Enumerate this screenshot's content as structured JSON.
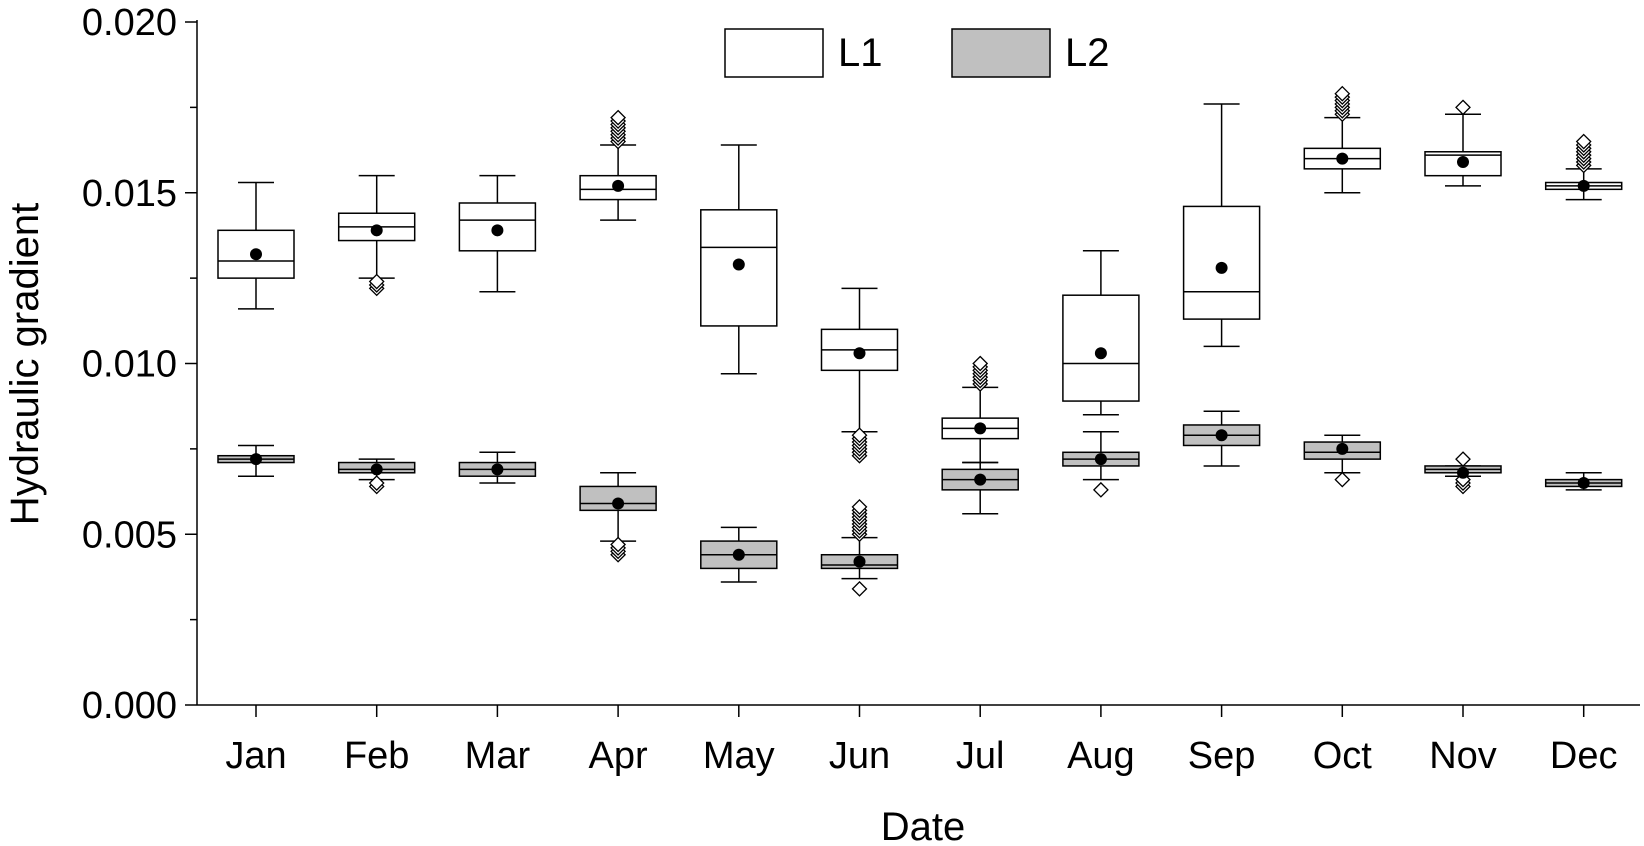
{
  "chart_data": {
    "type": "box",
    "title": "",
    "xlabel": "Date",
    "ylabel": "Hydraulic gradient",
    "ylim": [
      0,
      0.02
    ],
    "yticks": [
      "0.000",
      "0.005",
      "0.010",
      "0.015",
      "0.020"
    ],
    "ytick_values": [
      0,
      0.005,
      0.01,
      0.015,
      0.02
    ],
    "grid": false,
    "legend_position": "top-center",
    "categories": [
      "Jan",
      "Feb",
      "Mar",
      "Apr",
      "May",
      "Jun",
      "Jul",
      "Aug",
      "Sep",
      "Oct",
      "Nov",
      "Dec"
    ],
    "series": [
      {
        "name": "L1",
        "fill": "#ffffff",
        "boxes": [
          {
            "whisker_low": 0.0116,
            "q1": 0.0125,
            "median": 0.013,
            "q3": 0.0139,
            "whisker_high": 0.0153,
            "mean": 0.0132,
            "outliers_low": [],
            "outliers_high": []
          },
          {
            "whisker_low": 0.0125,
            "q1": 0.0136,
            "median": 0.014,
            "q3": 0.0144,
            "whisker_high": 0.0155,
            "mean": 0.0139,
            "outliers_low": [
              0.0122,
              0.0123,
              0.0124
            ],
            "outliers_high": []
          },
          {
            "whisker_low": 0.0121,
            "q1": 0.0133,
            "median": 0.0142,
            "q3": 0.0147,
            "whisker_high": 0.0155,
            "mean": 0.0139,
            "outliers_low": [],
            "outliers_high": []
          },
          {
            "whisker_low": 0.0142,
            "q1": 0.0148,
            "median": 0.0151,
            "q3": 0.0155,
            "whisker_high": 0.0164,
            "mean": 0.0152,
            "outliers_low": [],
            "outliers_high": [
              0.0165,
              0.0166,
              0.0167,
              0.0168,
              0.0169,
              0.017,
              0.0171,
              0.0172
            ]
          },
          {
            "whisker_low": 0.0097,
            "q1": 0.0111,
            "median": 0.0134,
            "q3": 0.0145,
            "whisker_high": 0.0164,
            "mean": 0.0129,
            "outliers_low": [],
            "outliers_high": []
          },
          {
            "whisker_low": 0.008,
            "q1": 0.0098,
            "median": 0.0104,
            "q3": 0.011,
            "whisker_high": 0.0122,
            "mean": 0.0103,
            "outliers_low": [
              0.0073,
              0.0074,
              0.0075,
              0.0076,
              0.0077,
              0.0078,
              0.0079
            ],
            "outliers_high": []
          },
          {
            "whisker_low": 0.0071,
            "q1": 0.0078,
            "median": 0.0081,
            "q3": 0.0084,
            "whisker_high": 0.0093,
            "mean": 0.0081,
            "outliers_low": [],
            "outliers_high": [
              0.0094,
              0.0095,
              0.0096,
              0.0097,
              0.0098,
              0.0099,
              0.01
            ]
          },
          {
            "whisker_low": 0.0085,
            "q1": 0.0089,
            "median": 0.01,
            "q3": 0.012,
            "whisker_high": 0.0133,
            "mean": 0.0103,
            "outliers_low": [],
            "outliers_high": []
          },
          {
            "whisker_low": 0.0105,
            "q1": 0.0113,
            "median": 0.0121,
            "q3": 0.0146,
            "whisker_high": 0.0176,
            "mean": 0.0128,
            "outliers_low": [],
            "outliers_high": []
          },
          {
            "whisker_low": 0.015,
            "q1": 0.0157,
            "median": 0.016,
            "q3": 0.0163,
            "whisker_high": 0.0172,
            "mean": 0.016,
            "outliers_low": [],
            "outliers_high": [
              0.0173,
              0.0174,
              0.0175,
              0.0176,
              0.0177,
              0.0178,
              0.0179
            ]
          },
          {
            "whisker_low": 0.0152,
            "q1": 0.0155,
            "median": 0.0161,
            "q3": 0.0162,
            "whisker_high": 0.0173,
            "mean": 0.0159,
            "outliers_low": [],
            "outliers_high": [
              0.0175
            ]
          },
          {
            "whisker_low": 0.0148,
            "q1": 0.0151,
            "median": 0.0152,
            "q3": 0.0153,
            "whisker_high": 0.0157,
            "mean": 0.0152,
            "outliers_low": [],
            "outliers_high": [
              0.0158,
              0.0159,
              0.016,
              0.0161,
              0.0162,
              0.0163,
              0.0164,
              0.0165
            ]
          }
        ]
      },
      {
        "name": "L2",
        "fill": "#c0c0c0",
        "boxes": [
          {
            "whisker_low": 0.0067,
            "q1": 0.0071,
            "median": 0.0072,
            "q3": 0.0073,
            "whisker_high": 0.0076,
            "mean": 0.0072,
            "outliers_low": [],
            "outliers_high": []
          },
          {
            "whisker_low": 0.0066,
            "q1": 0.0068,
            "median": 0.0069,
            "q3": 0.0071,
            "whisker_high": 0.0072,
            "mean": 0.0069,
            "outliers_low": [
              0.0064,
              0.0065
            ],
            "outliers_high": []
          },
          {
            "whisker_low": 0.0065,
            "q1": 0.0067,
            "median": 0.0069,
            "q3": 0.0071,
            "whisker_high": 0.0074,
            "mean": 0.0069,
            "outliers_low": [],
            "outliers_high": []
          },
          {
            "whisker_low": 0.0048,
            "q1": 0.0057,
            "median": 0.0059,
            "q3": 0.0064,
            "whisker_high": 0.0068,
            "mean": 0.0059,
            "outliers_low": [
              0.0044,
              0.0045,
              0.0046,
              0.0047
            ],
            "outliers_high": []
          },
          {
            "whisker_low": 0.0036,
            "q1": 0.004,
            "median": 0.0044,
            "q3": 0.0048,
            "whisker_high": 0.0052,
            "mean": 0.0044,
            "outliers_low": [],
            "outliers_high": []
          },
          {
            "whisker_low": 0.0037,
            "q1": 0.004,
            "median": 0.0041,
            "q3": 0.0044,
            "whisker_high": 0.0049,
            "mean": 0.0042,
            "outliers_low": [
              0.0034
            ],
            "outliers_high": [
              0.005,
              0.0051,
              0.0052,
              0.0053,
              0.0054,
              0.0055,
              0.0056,
              0.0057,
              0.0058
            ]
          },
          {
            "whisker_low": 0.0056,
            "q1": 0.0063,
            "median": 0.0066,
            "q3": 0.0069,
            "whisker_high": 0.0071,
            "mean": 0.0066,
            "outliers_low": [],
            "outliers_high": []
          },
          {
            "whisker_low": 0.0066,
            "q1": 0.007,
            "median": 0.0072,
            "q3": 0.0074,
            "whisker_high": 0.008,
            "mean": 0.0072,
            "outliers_low": [
              0.0063
            ],
            "outliers_high": []
          },
          {
            "whisker_low": 0.007,
            "q1": 0.0076,
            "median": 0.0079,
            "q3": 0.0082,
            "whisker_high": 0.0086,
            "mean": 0.0079,
            "outliers_low": [],
            "outliers_high": []
          },
          {
            "whisker_low": 0.0068,
            "q1": 0.0072,
            "median": 0.0074,
            "q3": 0.0077,
            "whisker_high": 0.0079,
            "mean": 0.0075,
            "outliers_low": [
              0.0066
            ],
            "outliers_high": []
          },
          {
            "whisker_low": 0.0067,
            "q1": 0.0068,
            "median": 0.0069,
            "q3": 0.007,
            "whisker_high": 0.007,
            "mean": 0.0068,
            "outliers_low": [
              0.0064,
              0.0065,
              0.0066
            ],
            "outliers_high": [
              0.0072
            ]
          },
          {
            "whisker_low": 0.0063,
            "q1": 0.0064,
            "median": 0.0065,
            "q3": 0.0066,
            "whisker_high": 0.0068,
            "mean": 0.0065,
            "outliers_low": [],
            "outliers_high": []
          }
        ]
      }
    ]
  }
}
